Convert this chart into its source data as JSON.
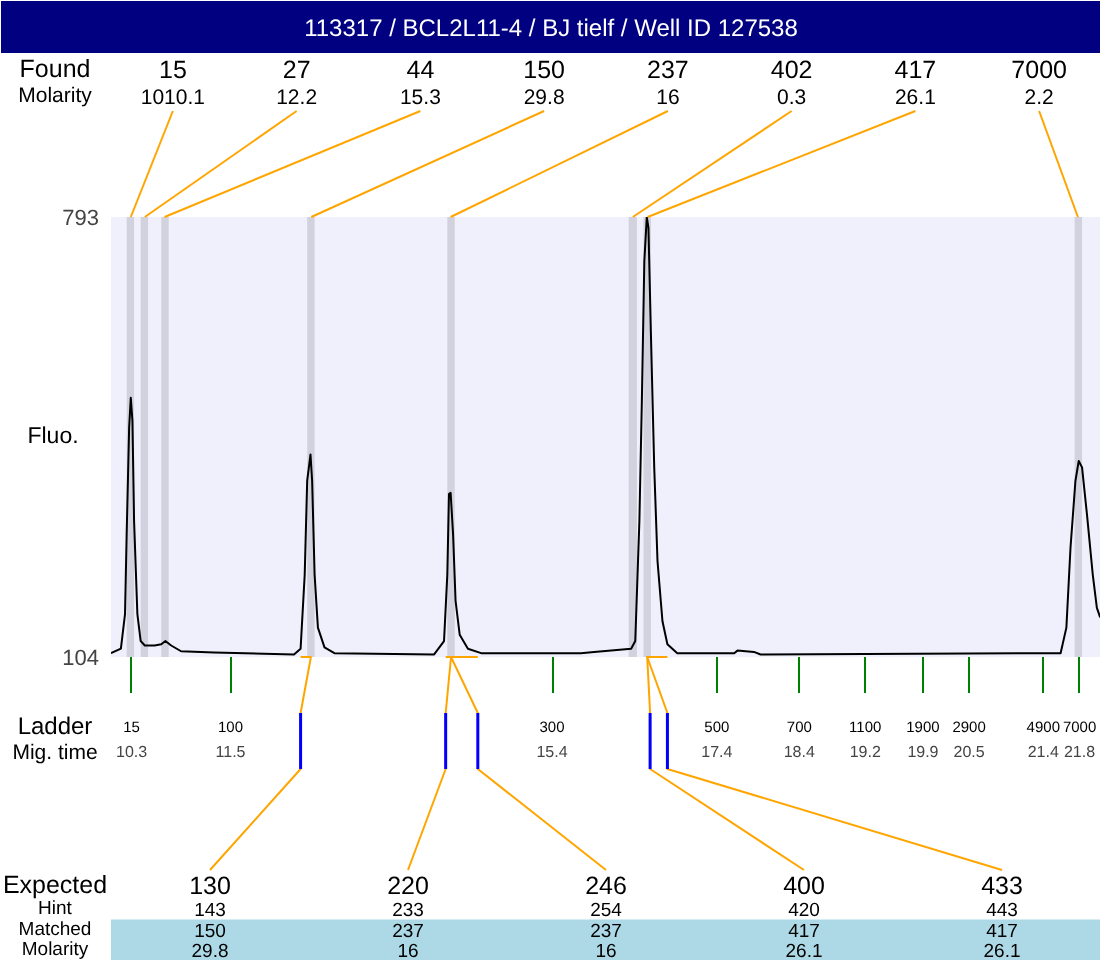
{
  "chart_data": {
    "type": "line",
    "title": "113317 / BCL2L11-4 / BJ tielf / Well ID 127538",
    "ylabel": "Fluo.",
    "xlabel": "Mig. time",
    "xlim": [
      10.05,
      22.06
    ],
    "xticks": [
      10.3,
      11.5,
      15.4,
      17.4,
      18.4,
      19.2,
      19.9,
      {
        "value": 20.46,
        "label": "20.5"
      },
      {
        "value": 21.36,
        "label": "21.4"
      },
      21.8
    ],
    "ylim": [
      104,
      793
    ],
    "yticks": [
      104,
      793
    ],
    "series": [
      {
        "color": "#000000",
        "x": [
          10.05,
          10.17,
          10.22,
          10.24,
          10.27,
          10.29,
          10.31,
          10.33,
          10.37,
          10.41,
          10.46,
          10.58,
          10.66,
          10.71,
          10.78,
          10.9,
          11.3,
          12.27,
          12.35,
          12.4,
          12.43,
          12.47,
          12.49,
          12.52,
          12.56,
          12.64,
          12.76,
          13.97,
          14.09,
          14.13,
          14.15,
          14.17,
          14.2,
          14.23,
          14.28,
          14.38,
          14.54,
          15.75,
          15.91,
          16.36,
          16.41,
          16.46,
          16.49,
          16.52,
          16.55,
          16.57,
          16.6,
          16.64,
          16.68,
          16.74,
          16.8,
          16.92,
          17.61,
          17.65,
          17.85,
          17.93,
          21.57,
          21.64,
          21.69,
          21.75,
          21.79,
          21.83,
          21.89,
          21.96,
          22.01,
          22.05
        ],
        "values": [
          110,
          117,
          171,
          296,
          463,
          510,
          474,
          317,
          171,
          129,
          122,
          122,
          124,
          129,
          122,
          113,
          111,
          108,
          117,
          233,
          380,
          421,
          380,
          233,
          150,
          119,
          110,
          108,
          129,
          233,
          359,
          361,
          296,
          192,
          139,
          117,
          110,
          110,
          112,
          117,
          129,
          317,
          505,
          724,
          793,
          776,
          609,
          401,
          254,
          160,
          124,
          110,
          110,
          114,
          112,
          108,
          110,
          150,
          275,
          380,
          411,
          401,
          327,
          233,
          181,
          166
        ]
      }
    ],
    "bands": [
      {
        "axis": "x",
        "from": 10.24,
        "to": 10.33,
        "label": "15",
        "color": "#d2d2de"
      },
      {
        "axis": "x",
        "from": 10.41,
        "to": 10.5,
        "label": "27",
        "color": "#d2d2de"
      },
      {
        "axis": "x",
        "from": 10.66,
        "to": 10.75,
        "label": "44",
        "color": "#d2d2de"
      },
      {
        "axis": "x",
        "from": 12.43,
        "to": 12.52,
        "label": "150",
        "color": "#d2d2de"
      },
      {
        "axis": "x",
        "from": 14.13,
        "to": 14.22,
        "label": "237",
        "color": "#d2d2de"
      },
      {
        "axis": "x",
        "from": 16.33,
        "to": 16.43,
        "label": "402",
        "color": "#d2d2de"
      },
      {
        "axis": "x",
        "from": 16.51,
        "to": 16.6,
        "label": "417",
        "color": "#d2d2de"
      },
      {
        "axis": "x",
        "from": 21.74,
        "to": 21.83,
        "label": "7000",
        "color": "#d2d2de"
      }
    ],
    "annotations": [
      "Found",
      "Molarity",
      "Ladder",
      "Expected",
      "Hint",
      "Matched",
      "Molarity",
      {
        "text": "1010.1",
        "x": 10.29,
        "y": 793
      },
      {
        "text": "12.2",
        "x": 10.46,
        "y": 793
      },
      {
        "text": "15.3",
        "x": 10.7,
        "y": 793
      },
      {
        "text": "29.8",
        "x": 12.48,
        "y": 793
      },
      {
        "text": "16",
        "x": 14.17,
        "y": 793
      },
      {
        "text": "0.3",
        "x": 16.38,
        "y": 793
      },
      {
        "text": "26.1",
        "x": 16.56,
        "y": 793
      },
      {
        "text": "2.2",
        "x": 21.78,
        "y": 793
      },
      "15",
      "100",
      "300",
      "500",
      "700",
      "1100",
      "1900",
      "2900",
      "4900",
      "7000",
      {
        "text": "130",
        "x": 12.35,
        "y": 104
      },
      {
        "text": "220",
        "x": 14.11,
        "y": 104
      },
      {
        "text": "246",
        "x": 14.5,
        "y": 104
      },
      {
        "text": "400",
        "x": 16.59,
        "y": 104
      },
      {
        "text": "433",
        "x": 16.8,
        "y": 104
      },
      "143",
      "233",
      "254",
      "420",
      "443",
      "150",
      "237",
      "237",
      "417",
      "417",
      "29.8",
      "16",
      "16",
      "26.1",
      "26.1"
    ]
  }
}
